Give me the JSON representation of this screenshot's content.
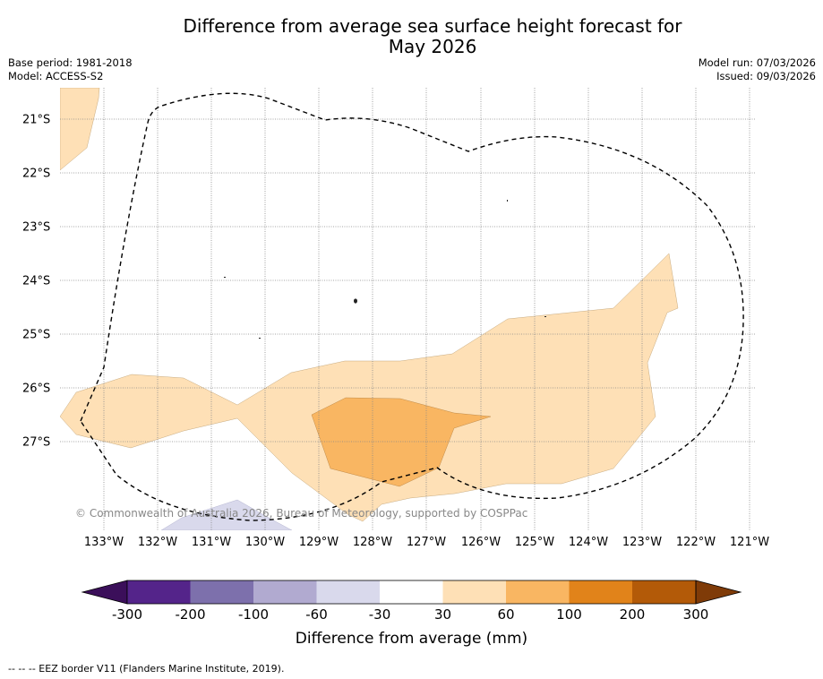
{
  "title": {
    "line1": "Difference from average sea surface height forecast for",
    "line2": "May 2026"
  },
  "meta": {
    "base_period": "Base period: 1981-2018",
    "model": "Model: ACCESS-S2",
    "model_run": "Model run: 07/03/2026",
    "issued": "Issued: 09/03/2026"
  },
  "map": {
    "copyright": "© Commonwealth of Australia 2026, Bureau of Meteorology, supported by COSPPac",
    "lon_labels": [
      "133°W",
      "132°W",
      "131°W",
      "130°W",
      "129°W",
      "128°W",
      "127°W",
      "126°W",
      "125°W",
      "124°W",
      "123°W",
      "122°W",
      "121°W"
    ],
    "lat_labels": [
      "21°S",
      "22°S",
      "23°S",
      "24°S",
      "25°S",
      "26°S",
      "27°S"
    ]
  },
  "colorbar": {
    "ticks": [
      "-300",
      "-200",
      "-100",
      "-60",
      "-30",
      "30",
      "60",
      "100",
      "200",
      "300"
    ],
    "colors": [
      "#3b0f5a",
      "#54248a",
      "#7d70ac",
      "#b1aad0",
      "#d9d9ec",
      "#ffffff",
      "#fee0b6",
      "#f9b662",
      "#e1831a",
      "#b35a08",
      "#7f3b08"
    ],
    "label": "Difference from average (mm)"
  },
  "footer": "--  --  -- EEZ border V11 (Flanders Marine Institute, 2019)."
}
